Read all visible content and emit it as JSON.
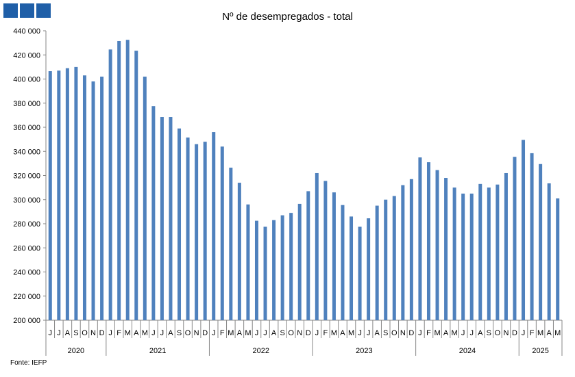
{
  "header": {
    "logo_icon": "iefp-logo-icon",
    "brand_color": "#1f5fa8"
  },
  "chart_data": {
    "type": "bar",
    "title": "Nº de desempregados - total",
    "xlabel": "",
    "ylabel": "",
    "ylim": [
      200000,
      440000
    ],
    "yticks": [
      "200 000",
      "220 000",
      "240 000",
      "260 000",
      "280 000",
      "300 000",
      "320 000",
      "340 000",
      "360 000",
      "380 000",
      "400 000",
      "420 000",
      "440 000"
    ],
    "grid": false,
    "legend": "none",
    "bar_color": "#4f81bd",
    "categories": [
      "J",
      "J",
      "A",
      "S",
      "O",
      "N",
      "D",
      "J",
      "F",
      "M",
      "A",
      "M",
      "J",
      "J",
      "A",
      "S",
      "O",
      "N",
      "D",
      "J",
      "F",
      "M",
      "A",
      "M",
      "J",
      "J",
      "A",
      "S",
      "O",
      "N",
      "D",
      "J",
      "F",
      "M",
      "A",
      "M",
      "J",
      "J",
      "A",
      "S",
      "O",
      "N",
      "D",
      "J",
      "F",
      "M",
      "A",
      "M",
      "J",
      "J",
      "A",
      "S",
      "O",
      "N",
      "D",
      "J",
      "F",
      "M",
      "A",
      "M"
    ],
    "years": [
      {
        "label": "2020",
        "count": 7
      },
      {
        "label": "2021",
        "count": 12
      },
      {
        "label": "2022",
        "count": 12
      },
      {
        "label": "2023",
        "count": 12
      },
      {
        "label": "2024",
        "count": 12
      },
      {
        "label": "2025",
        "count": 5
      }
    ],
    "values": [
      406500,
      407000,
      409000,
      410000,
      403000,
      398000,
      402000,
      424500,
      431500,
      432500,
      423500,
      402000,
      377500,
      368500,
      368500,
      359000,
      351500,
      346000,
      348000,
      356000,
      344000,
      326500,
      314000,
      296000,
      282500,
      277500,
      283000,
      287000,
      289000,
      296500,
      307000,
      322000,
      315500,
      306000,
      295500,
      286000,
      277500,
      284500,
      295000,
      300000,
      303000,
      312000,
      317000,
      335000,
      331000,
      324500,
      318000,
      310000,
      305000,
      305000,
      313000,
      310000,
      312500,
      322000,
      335500,
      349500,
      338500,
      329500,
      313500,
      301000
    ]
  },
  "footer": {
    "source": "Fonte: IEFP"
  }
}
